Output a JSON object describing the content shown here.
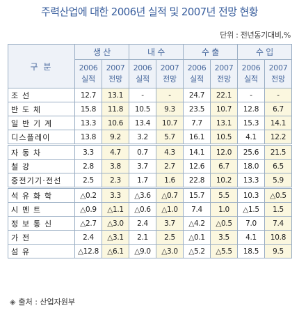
{
  "title": "주력산업에 대한 2006년 실적 및 2007년 전망 현황",
  "unit": "단위 : 전년동기대비,%",
  "table": {
    "corner": "구 분",
    "groups": [
      "생 산",
      "내 수",
      "수 출",
      "수 입"
    ],
    "subheads": [
      [
        "2006",
        "실적"
      ],
      [
        "2007",
        "전망"
      ],
      [
        "2006",
        "실적"
      ],
      [
        "2007",
        "전망"
      ],
      [
        "2006",
        "실적"
      ],
      [
        "2007",
        "전망"
      ],
      [
        "2006",
        "실적"
      ],
      [
        "2007",
        "전망"
      ]
    ],
    "rows": [
      {
        "label": "조 선",
        "values": [
          "12.7",
          "13.1",
          "-",
          "-",
          "24.7",
          "22.1",
          "-",
          "-"
        ]
      },
      {
        "label": "반 도 체",
        "values": [
          "15.8",
          "11.8",
          "10.5",
          "9.3",
          "23.5",
          "10.7",
          "12.8",
          "6.7"
        ]
      },
      {
        "label": "일 반 기 계",
        "values": [
          "13.3",
          "10.6",
          "13.4",
          "10.7",
          "7.7",
          "13.1",
          "15.3",
          "14.1"
        ]
      },
      {
        "label": "디스플레이",
        "values": [
          "13.8",
          "9.2",
          "3.2",
          "5.7",
          "16.1",
          "10.5",
          "4.1",
          "12.2"
        ]
      },
      {
        "label": "자 동 차",
        "values": [
          "3.3",
          "4.7",
          "0.7",
          "4.3",
          "14.1",
          "12.0",
          "25.6",
          "21.5"
        ]
      },
      {
        "label": "철 강",
        "values": [
          "2.8",
          "3.8",
          "3.7",
          "2.7",
          "12.6",
          "6.7",
          "18.0",
          "6.5"
        ]
      },
      {
        "label": "중전기기·전선",
        "values": [
          "2.5",
          "2.3",
          "1.7",
          "1.6",
          "22.8",
          "10.2",
          "13.3",
          "5.9"
        ]
      },
      {
        "label": "석 유 화 학",
        "values": [
          "△0.2",
          "3.3",
          "△3.6",
          "△0.7",
          "15.7",
          "5.5",
          "10.3",
          "△0.5"
        ]
      },
      {
        "label": "시 멘 트",
        "values": [
          "△0.9",
          "△1.1",
          "△0.6",
          "△1.0",
          "7.4",
          "1.0",
          "△1.5",
          "1.5"
        ]
      },
      {
        "label": "정 보 통 신",
        "values": [
          "△2.7",
          "△3.0",
          "2.4",
          "3.7",
          "△4.2",
          "△0.5",
          "7.0",
          "7.4"
        ]
      },
      {
        "label": "가 전",
        "values": [
          "2.4",
          "△3.1",
          "2.1",
          "2.5",
          "△0.1",
          "3.5",
          "4.1",
          "10.8"
        ]
      },
      {
        "label": "섬 유",
        "values": [
          "△12.8",
          "△6.1",
          "△9.0",
          "△3.0",
          "△5.2",
          "△5.5",
          "18.5",
          "9.5"
        ]
      }
    ]
  },
  "source": "출처 : 산업자원부",
  "source_icon": "diamond-bullet-icon"
}
